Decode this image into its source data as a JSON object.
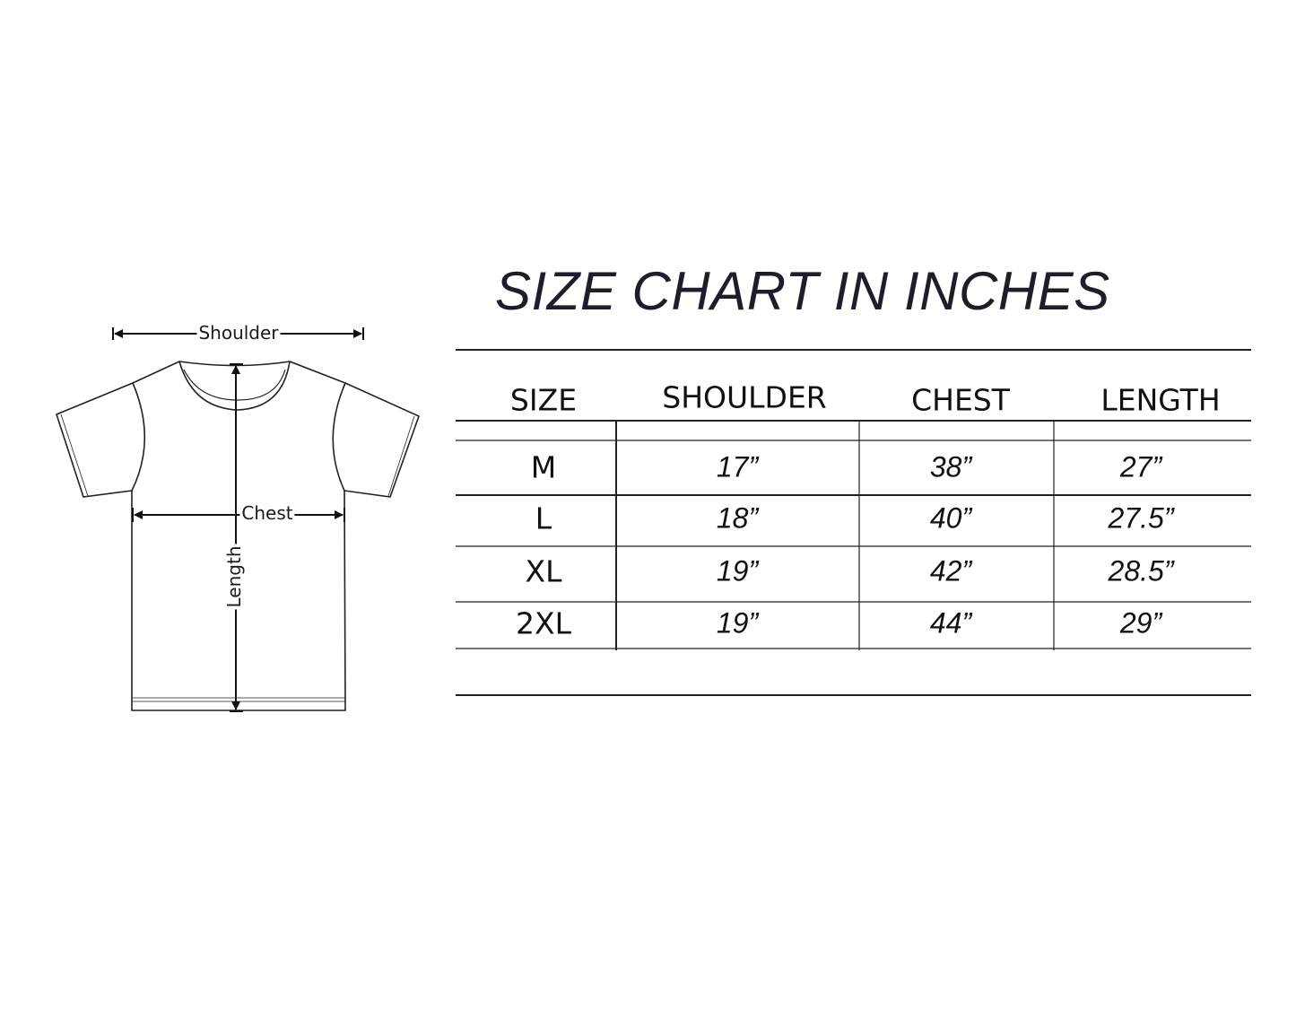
{
  "diagram": {
    "labels": {
      "shoulder": "Shoulder",
      "chest": "Chest",
      "length": "Length"
    }
  },
  "table": {
    "title": "SIZE CHART IN INCHES",
    "headers": [
      "SIZE",
      "SHOULDER",
      "CHEST",
      "LENGTH"
    ],
    "rows": [
      [
        "M",
        "17”",
        "38”",
        "27”"
      ],
      [
        "L",
        "18”",
        "40”",
        "27.5”"
      ],
      [
        "XL",
        "19”",
        "42”",
        "28.5”"
      ],
      [
        "2XL",
        "19”",
        "44”",
        "29”"
      ]
    ]
  }
}
